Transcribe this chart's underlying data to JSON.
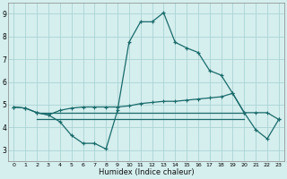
{
  "xlabel": "Humidex (Indice chaleur)",
  "bg_color": "#d5eeee",
  "grid_color": "#aad4d4",
  "line_color": "#1a6b6b",
  "xlim": [
    -0.5,
    23.5
  ],
  "ylim": [
    2.5,
    9.5
  ],
  "xticks": [
    0,
    1,
    2,
    3,
    4,
    5,
    6,
    7,
    8,
    9,
    10,
    11,
    12,
    13,
    14,
    15,
    16,
    17,
    18,
    19,
    20,
    21,
    22,
    23
  ],
  "yticks": [
    3,
    4,
    5,
    6,
    7,
    8,
    9
  ],
  "line1_x": [
    0,
    1,
    2,
    3,
    4,
    5,
    6,
    7,
    8,
    9,
    10,
    11,
    12,
    13,
    14,
    15,
    16,
    17,
    18,
    19,
    20,
    21,
    22,
    23
  ],
  "line1_y": [
    4.9,
    4.85,
    4.65,
    4.55,
    4.25,
    3.65,
    3.3,
    3.3,
    3.05,
    4.75,
    7.75,
    8.65,
    8.65,
    9.05,
    7.75,
    7.5,
    7.3,
    6.5,
    6.3,
    5.5,
    4.65,
    3.9,
    3.5,
    4.35
  ],
  "line2_x": [
    0,
    1,
    2,
    3,
    4,
    5,
    6,
    7,
    8,
    9,
    10,
    11,
    12,
    13,
    14,
    15,
    16,
    17,
    18,
    19,
    20,
    21,
    22,
    23
  ],
  "line2_y": [
    4.9,
    4.85,
    4.65,
    4.55,
    4.75,
    4.85,
    4.9,
    4.9,
    4.9,
    4.9,
    4.95,
    5.05,
    5.1,
    5.15,
    5.15,
    5.2,
    5.25,
    5.3,
    5.35,
    5.5,
    4.65,
    4.65,
    4.65,
    4.35
  ],
  "line3_x": [
    2,
    20
  ],
  "line3_y": [
    4.65,
    4.65
  ],
  "line4_x": [
    2,
    20
  ],
  "line4_y": [
    4.35,
    4.35
  ]
}
